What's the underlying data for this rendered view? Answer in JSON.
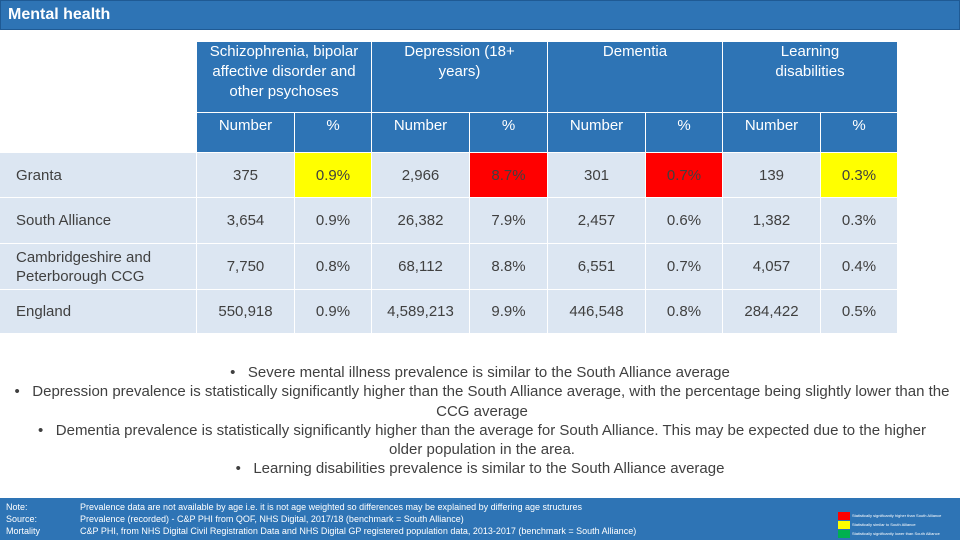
{
  "title": "Mental health",
  "columns": [
    {
      "header": "Schizophrenia, bipolar affective disorder and other psychoses"
    },
    {
      "header": "Depression (18+ years)"
    },
    {
      "header": "Dementia"
    },
    {
      "header": "Learning disabilities"
    }
  ],
  "subheaders": {
    "number": "Number",
    "percent": "%"
  },
  "rows": [
    {
      "label": "Granta",
      "values": [
        "375",
        "0.9%",
        "2,966",
        "8.7%",
        "301",
        "0.7%",
        "139",
        "0.3%"
      ]
    },
    {
      "label": "South Alliance",
      "values": [
        "3,654",
        "0.9%",
        "26,382",
        "7.9%",
        "2,457",
        "0.6%",
        "1,382",
        "0.3%"
      ]
    },
    {
      "label": "Cambridgeshire and Peterborough CCG",
      "values": [
        "7,750",
        "0.8%",
        "68,112",
        "8.8%",
        "6,551",
        "0.7%",
        "4,057",
        "0.4%"
      ]
    },
    {
      "label": "England",
      "values": [
        "550,918",
        "0.9%",
        "4,589,213",
        "9.9%",
        "446,548",
        "0.8%",
        "284,422",
        "0.5%"
      ]
    }
  ],
  "bullets": [
    "Severe mental illness prevalence is similar to the South Alliance average",
    "Depression prevalence is statistically significantly higher than the South Alliance average, with the percentage being slightly lower than the CCG average",
    "Dementia prevalence is statistically significantly higher than the average for South Alliance.  This may be expected due to the higher older population in the area.",
    "Learning disabilities prevalence is similar to the South Alliance average"
  ],
  "footer": {
    "note_label": "Note:",
    "note_text": "Prevalence data are not available by age i.e. it is not age weighted so differences may be explained by differing age structures",
    "source_label": "Source:",
    "source_text": "Prevalence (recorded) - C&P PHI from QOF, NHS Digital, 2017/18 (benchmark = South Alliance)",
    "mortality_label": "Mortality",
    "mortality_text": "C&P PHI, from NHS Digital Civil Registration Data and NHS Digital GP registered population data, 2013-2017 (benchmark = South Alliance)"
  },
  "legend": [
    {
      "color": "#ff0000",
      "text": "Statistically significantly higher than South Alliance"
    },
    {
      "color": "#ffff00",
      "text": "Statistically similar to South Alliance"
    },
    {
      "color": "#00b050",
      "text": "Statistically significantly lower than South Alliance"
    }
  ],
  "colors": {
    "header_bg": "#2e74b5",
    "cell_bg": "#dce6f2",
    "higher": "#ff0000",
    "similar": "#ffff00"
  }
}
